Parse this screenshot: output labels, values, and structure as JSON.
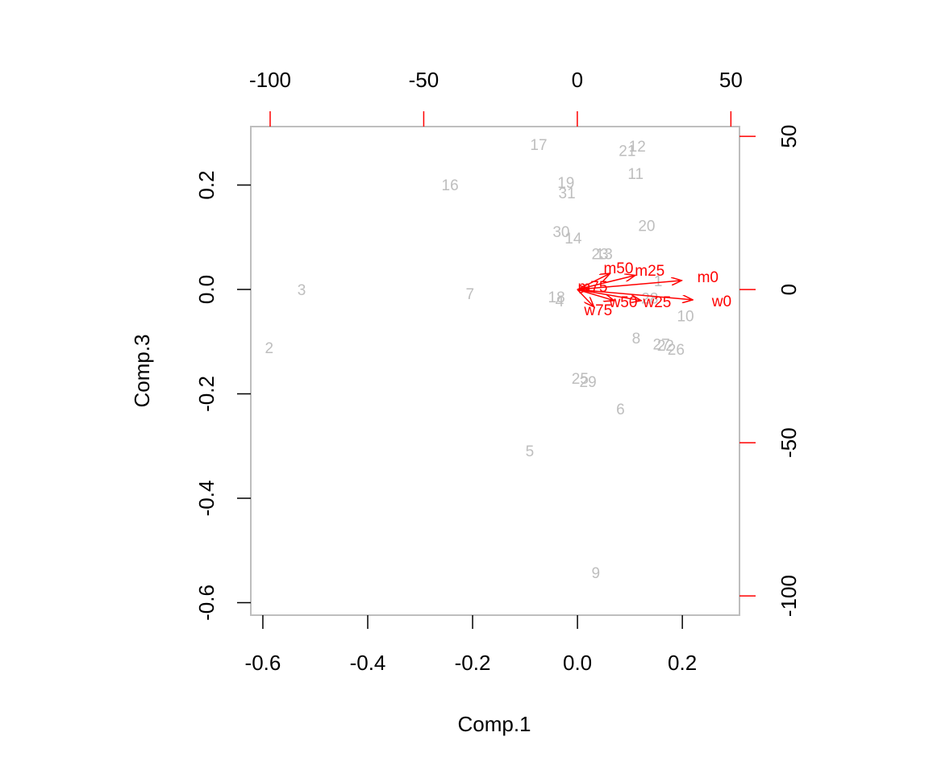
{
  "chart_data": {
    "type": "biplot",
    "xlabel": "Comp.1",
    "ylabel": "Comp.3",
    "xlim": [
      -0.623,
      0.309
    ],
    "ylim": [
      -0.624,
      0.312
    ],
    "xticks": [
      -0.6,
      -0.4,
      -0.2,
      {
        "value": 0,
        "label": "0.0"
      },
      0.2
    ],
    "yticks": [
      -0.6,
      -0.4,
      -0.2,
      {
        "value": 0,
        "label": "0.0"
      },
      0.2
    ],
    "x2lim": [
      -106.3,
      52.8
    ],
    "y2lim": [
      -106.3,
      53.2
    ],
    "x2ticks": [
      -100,
      -50,
      0,
      50
    ],
    "y2ticks": [
      -100,
      -50,
      0,
      50
    ],
    "points": {
      "color": "#bebebe",
      "labels": [
        "1",
        "2",
        "3",
        "4",
        "5",
        "6",
        "7",
        "8",
        "9",
        "10",
        "11",
        "12",
        "13",
        "14",
        "16",
        "17",
        "18",
        "19",
        "20",
        "21",
        "22",
        "23",
        "25",
        "26",
        "27",
        "28",
        "29",
        "30",
        "31"
      ],
      "x": [
        0.154,
        -0.588,
        -0.526,
        -0.034,
        -0.091,
        0.082,
        -0.205,
        0.112,
        0.035,
        0.206,
        0.111,
        0.114,
        0.051,
        -0.008,
        -0.243,
        -0.074,
        -0.04,
        -0.022,
        0.132,
        0.095,
        0.168,
        0.043,
        0.005,
        0.188,
        0.16,
        0.138,
        0.02,
        -0.031,
        -0.02
      ],
      "y": [
        0.014,
        -0.114,
        -0.003,
        -0.025,
        -0.312,
        -0.232,
        -0.011,
        -0.096,
        -0.545,
        -0.053,
        0.219,
        0.272,
        0.066,
        0.096,
        0.198,
        0.275,
        -0.017,
        0.202,
        0.12,
        0.263,
        -0.11,
        0.066,
        -0.173,
        -0.117,
        -0.107,
        -0.019,
        -0.179,
        0.108,
        0.182
      ]
    },
    "loadings": {
      "color": "#ff0000",
      "labels": [
        "m0",
        "w0",
        "m25",
        "w25",
        "m50",
        "w50",
        "m75",
        "w75"
      ],
      "x": [
        42.5,
        47.0,
        23.6,
        26.0,
        13.4,
        15.0,
        5.0,
        6.8
      ],
      "y": [
        3.7,
        -4.2,
        5.8,
        -4.5,
        6.6,
        -4.5,
        0.5,
        -7.1
      ]
    }
  }
}
